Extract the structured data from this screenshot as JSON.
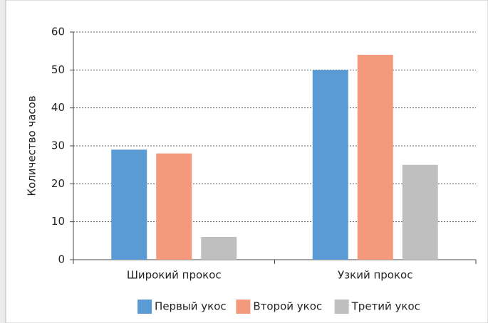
{
  "chart_data": {
    "type": "bar",
    "y_label": "Количество часов",
    "categories": [
      "Широкий прокос",
      "Узкий прокос"
    ],
    "series": [
      {
        "name": "Первый укос",
        "color": "#5b9bd5",
        "values": [
          29,
          50
        ]
      },
      {
        "name": "Второй укос",
        "color": "#f4997b",
        "values": [
          28,
          54
        ]
      },
      {
        "name": "Третий укос",
        "color": "#bfbfbf",
        "values": [
          6,
          25
        ]
      }
    ],
    "ylim": [
      0,
      60
    ],
    "yticks": [
      0,
      10,
      20,
      30,
      40,
      50,
      60
    ],
    "grid": true,
    "legend": "bottom"
  }
}
